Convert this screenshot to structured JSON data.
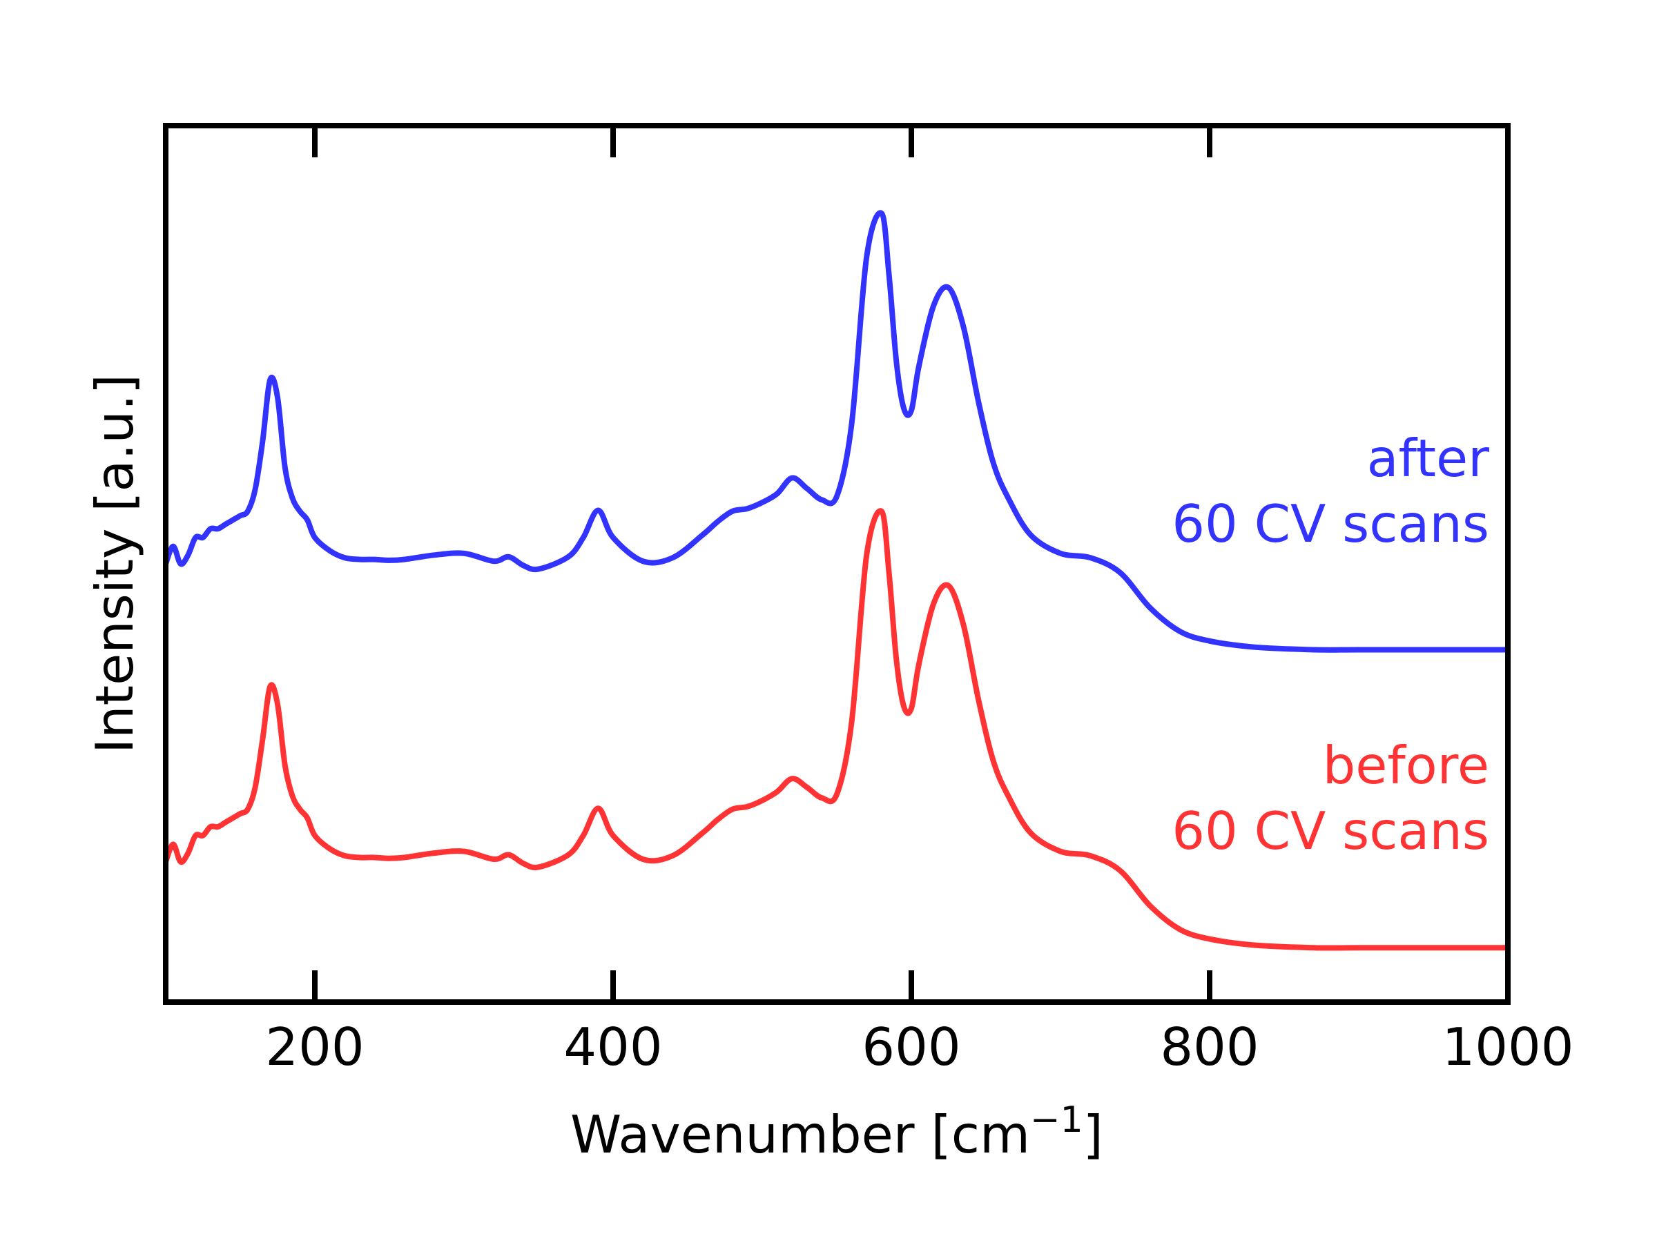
{
  "chart_data": {
    "type": "line",
    "xlabel_main": "Wavenumber [cm",
    "xlabel_sup": "−1",
    "xlabel_end": "]",
    "ylabel": "Intensity [a.u.]",
    "xlim": [
      100,
      1000
    ],
    "ylim": [
      0,
      10
    ],
    "xticks": [
      200,
      400,
      600,
      800,
      1000
    ],
    "ytick_labels": "none",
    "grid": false,
    "legend": "none",
    "annotations": [
      {
        "lines": [
          "after ",
          "60 CV scans"
        ],
        "color": "#3333ff",
        "series": 0
      },
      {
        "lines": [
          "before",
          "60 CV scans"
        ],
        "color": "#ff3333",
        "series": 1
      }
    ],
    "series": [
      {
        "color": "#3333ff",
        "x": [
          100,
          105,
          110,
          115,
          120,
          125,
          130,
          135,
          140,
          145,
          150,
          155,
          160,
          165,
          170,
          175,
          180,
          185,
          190,
          195,
          200,
          210,
          220,
          230,
          240,
          250,
          260,
          280,
          300,
          320,
          330,
          340,
          350,
          370,
          380,
          390,
          400,
          420,
          440,
          460,
          470,
          480,
          490,
          500,
          510,
          520,
          530,
          540,
          550,
          560,
          570,
          580,
          585,
          590,
          595,
          600,
          605,
          615,
          625,
          635,
          645,
          655,
          665,
          680,
          700,
          720,
          740,
          760,
          780,
          800,
          830,
          870,
          900,
          950,
          1000
        ],
        "y": [
          5.0,
          5.2,
          5.0,
          5.1,
          5.3,
          5.3,
          5.4,
          5.4,
          5.45,
          5.5,
          5.55,
          5.6,
          5.85,
          6.4,
          7.1,
          6.9,
          6.1,
          5.75,
          5.6,
          5.5,
          5.3,
          5.15,
          5.07,
          5.05,
          5.05,
          5.04,
          5.05,
          5.1,
          5.12,
          5.03,
          5.08,
          4.98,
          4.94,
          5.08,
          5.3,
          5.61,
          5.3,
          5.03,
          5.07,
          5.33,
          5.48,
          5.6,
          5.63,
          5.7,
          5.8,
          5.98,
          5.86,
          5.73,
          5.77,
          6.6,
          8.5,
          9.0,
          8.3,
          7.3,
          6.77,
          6.75,
          7.25,
          7.95,
          8.15,
          7.7,
          6.85,
          6.15,
          5.75,
          5.33,
          5.12,
          5.07,
          4.9,
          4.5,
          4.23,
          4.12,
          4.05,
          4.02,
          4.02,
          4.02,
          4.02
        ]
      },
      {
        "color": "#ff3333",
        "x": [
          100,
          105,
          110,
          115,
          120,
          125,
          130,
          135,
          140,
          145,
          150,
          155,
          160,
          165,
          170,
          175,
          180,
          185,
          190,
          195,
          200,
          210,
          220,
          230,
          240,
          250,
          260,
          280,
          300,
          320,
          330,
          340,
          350,
          370,
          380,
          390,
          400,
          420,
          440,
          460,
          470,
          480,
          490,
          500,
          510,
          520,
          530,
          540,
          550,
          560,
          570,
          580,
          585,
          590,
          595,
          600,
          605,
          615,
          625,
          635,
          645,
          655,
          665,
          680,
          700,
          720,
          740,
          760,
          780,
          800,
          830,
          870,
          900,
          950,
          1000
        ],
        "y": [
          1.6,
          1.8,
          1.6,
          1.7,
          1.9,
          1.9,
          2.0,
          2.0,
          2.05,
          2.1,
          2.15,
          2.2,
          2.45,
          3.0,
          3.6,
          3.4,
          2.7,
          2.35,
          2.2,
          2.1,
          1.9,
          1.75,
          1.67,
          1.65,
          1.65,
          1.64,
          1.65,
          1.7,
          1.72,
          1.63,
          1.68,
          1.58,
          1.54,
          1.68,
          1.9,
          2.21,
          1.9,
          1.63,
          1.67,
          1.93,
          2.08,
          2.2,
          2.23,
          2.3,
          2.4,
          2.55,
          2.45,
          2.33,
          2.37,
          3.2,
          5.1,
          5.6,
          4.9,
          3.9,
          3.37,
          3.35,
          3.85,
          4.55,
          4.75,
          4.3,
          3.45,
          2.75,
          2.35,
          1.93,
          1.72,
          1.67,
          1.5,
          1.1,
          0.83,
          0.72,
          0.65,
          0.62,
          0.62,
          0.62,
          0.62
        ]
      }
    ]
  }
}
